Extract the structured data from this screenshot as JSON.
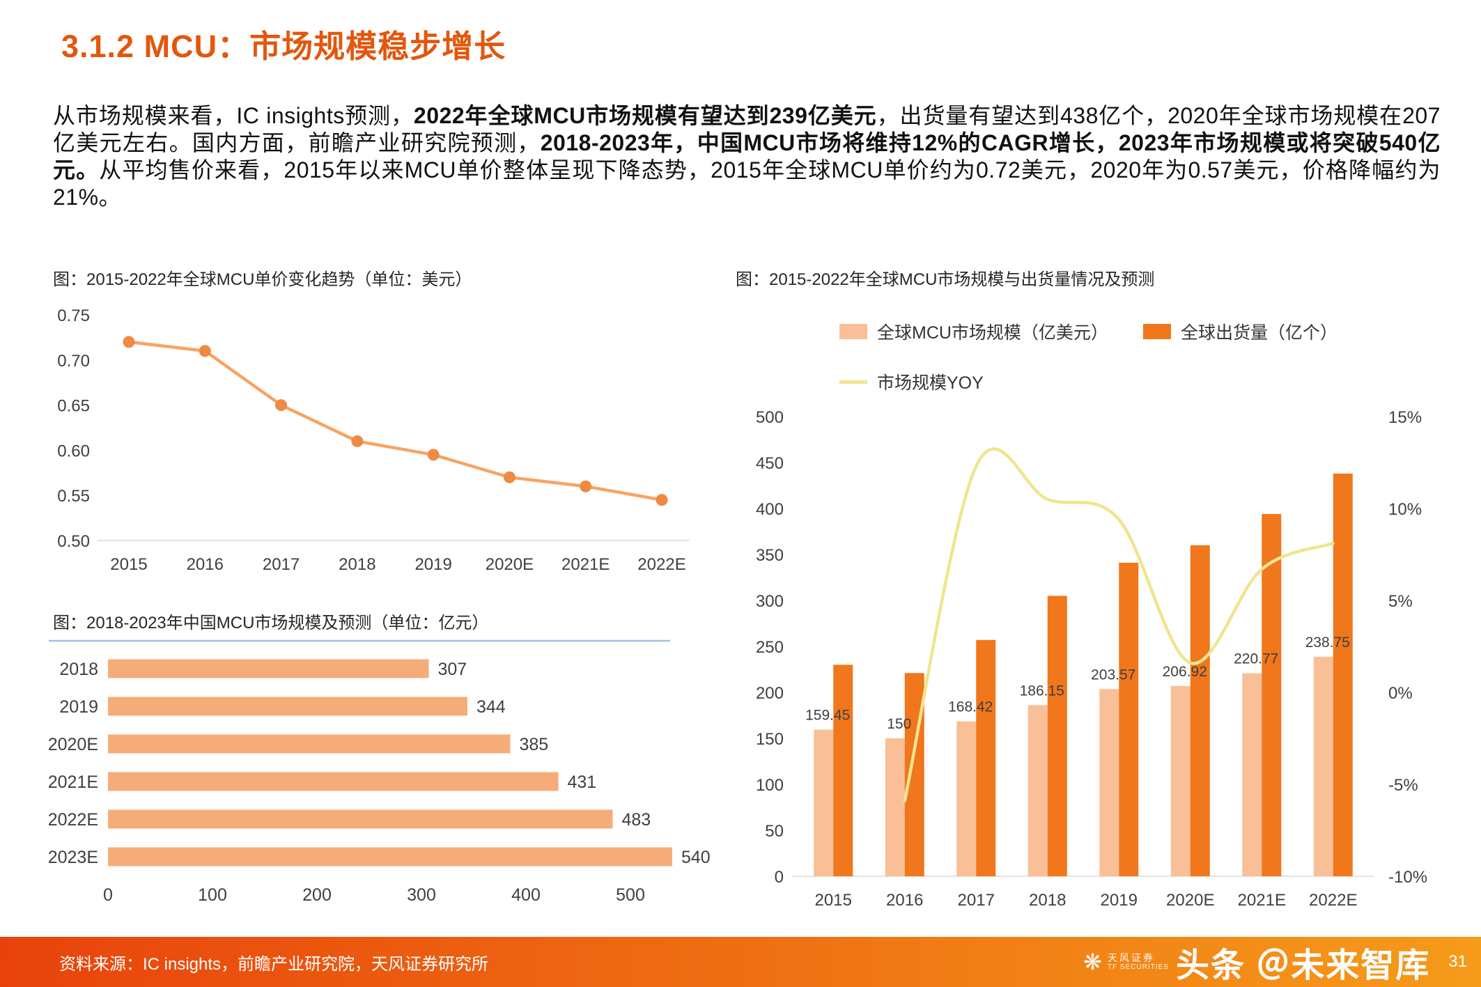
{
  "page": {
    "title": "3.1.2 MCU：市场规模稳步增长",
    "page_number": "31"
  },
  "intro": {
    "segments": [
      {
        "text": "从市场规模来看，IC insights预测，",
        "bold": false
      },
      {
        "text": "2022年全球MCU市场规模有望达到239亿美元",
        "bold": true
      },
      {
        "text": "，出货量有望达到438亿个，2020年全球市场规模在207亿美元左右。国内方面，前瞻产业研究院预测，",
        "bold": false
      },
      {
        "text": "2018-2023年，中国MCU市场将维持12%的CAGR增长，2023年市场规模或将突破540亿元。",
        "bold": true
      },
      {
        "text": "从平均售价来看，2015年以来MCU单价整体呈现下降态势，2015年全球MCU单价约为0.72美元，2020年为0.57美元，价格降幅约为21%。",
        "bold": false
      }
    ]
  },
  "footer": {
    "source": "资料来源：IC insights，前瞻产业研究院，天风证券研究所",
    "watermark": "头条 ＠未来智库",
    "logo_cn": "天风证券",
    "logo_en": "TF SECURITIES"
  },
  "colors": {
    "accent_title": "#e2570d",
    "footer_gradient_start": "#e8430c",
    "footer_gradient_end": "#f59b1a",
    "blue_rule": "#9dc3e6",
    "axis_line": "#d9d9d9"
  },
  "chart_data": [
    {
      "type": "line",
      "title": "图：2015-2022年全球MCU单价变化趋势（单位：美元）",
      "categories": [
        "2015",
        "2016",
        "2017",
        "2018",
        "2019",
        "2020E",
        "2021E",
        "2022E"
      ],
      "values": [
        0.72,
        0.71,
        0.65,
        0.61,
        0.595,
        0.57,
        0.56,
        0.545
      ],
      "ylim": [
        0.5,
        0.75
      ],
      "yticks": [
        0.75,
        0.7,
        0.65,
        0.6,
        0.55,
        0.5
      ],
      "line_color": "#f5a465",
      "marker_color": "#ee8a43",
      "grid": false,
      "legend": "none",
      "xlabel": "",
      "ylabel": ""
    },
    {
      "type": "bar",
      "orientation": "horizontal",
      "title": "图：2018-2023年中国MCU市场规模及预测（单位：亿元）",
      "categories": [
        "2018",
        "2019",
        "2020E",
        "2021E",
        "2022E",
        "2023E"
      ],
      "values": [
        307,
        344,
        385,
        431,
        483,
        540
      ],
      "xlim": [
        0,
        560
      ],
      "xticks": [
        0,
        100,
        200,
        300,
        400,
        500
      ],
      "bar_color": "#f6ac79",
      "grid": false,
      "legend": "none",
      "xlabel": "",
      "ylabel": ""
    },
    {
      "type": "combo",
      "title": "图：2015-2022年全球MCU市场规模与出货量情况及预测",
      "categories": [
        "2015",
        "2016",
        "2017",
        "2018",
        "2019",
        "2020E",
        "2021E",
        "2022E"
      ],
      "series": [
        {
          "name": "全球MCU市场规模（亿美元）",
          "kind": "bar",
          "axis": "left",
          "color": "#f9c098",
          "values": [
            159.45,
            150,
            168.42,
            186.15,
            203.57,
            206.92,
            220.77,
            238.75
          ],
          "labels": [
            "159.45",
            "150",
            "168.42",
            "186.15",
            "203.57",
            "206.92",
            "220.77",
            "238.75"
          ]
        },
        {
          "name": "全球出货量（亿个）",
          "kind": "bar",
          "axis": "left",
          "color": "#f0771b",
          "values": [
            230,
            221,
            257,
            305,
            341,
            360,
            394,
            438
          ]
        },
        {
          "name": "市场规模YOY",
          "kind": "line",
          "axis": "right",
          "color": "#f0e58e",
          "values": [
            null,
            -5.9,
            12.3,
            10.5,
            9.4,
            1.6,
            6.7,
            8.1
          ]
        }
      ],
      "ylim_left": [
        0,
        500
      ],
      "yticks_left": [
        500,
        450,
        400,
        350,
        300,
        250,
        200,
        150,
        100,
        50,
        0
      ],
      "ylim_right": [
        -10,
        15
      ],
      "yticks_right": [
        15,
        10,
        5,
        0,
        -5,
        -10
      ],
      "grid": false,
      "legend_position": "top"
    }
  ]
}
